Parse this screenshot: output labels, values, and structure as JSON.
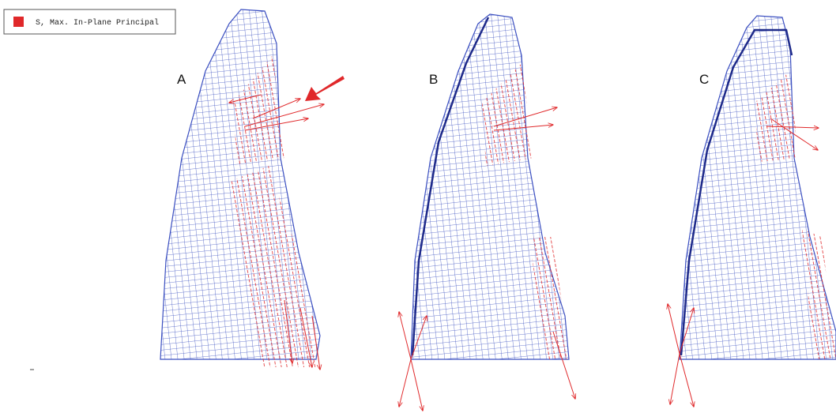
{
  "legend": {
    "label": "S, Max. In-Plane Principal"
  },
  "panels": [
    {
      "label": "A"
    },
    {
      "label": "B"
    },
    {
      "label": "C"
    }
  ]
}
